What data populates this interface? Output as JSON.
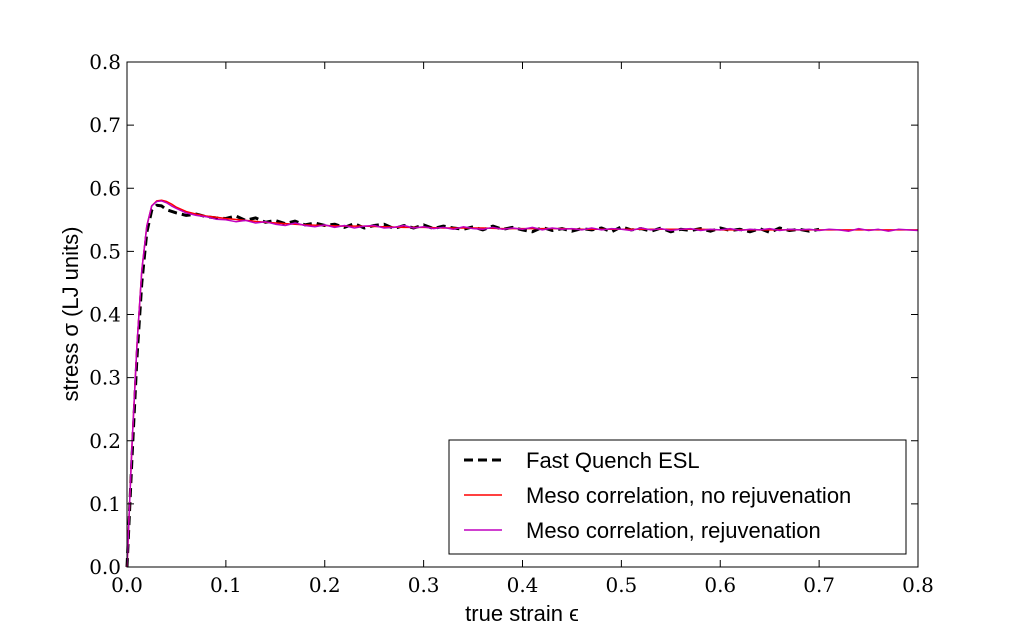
{
  "chart_data": {
    "type": "line",
    "xlabel": "true strain ϵ",
    "ylabel": "stress σ (LJ units)",
    "xlim": [
      0.0,
      0.8
    ],
    "ylim": [
      0.0,
      0.8
    ],
    "xticks": [
      "0.0",
      "0.1",
      "0.2",
      "0.3",
      "0.4",
      "0.5",
      "0.6",
      "0.7",
      "0.8"
    ],
    "yticks": [
      "0.0",
      "0.1",
      "0.2",
      "0.3",
      "0.4",
      "0.5",
      "0.6",
      "0.7",
      "0.8"
    ],
    "grid": false,
    "legend_position": "lower-right",
    "series": [
      {
        "name": "Fast Quench ESL",
        "style": "dashed",
        "color": "#000000",
        "x": [
          0.0,
          0.005,
          0.01,
          0.015,
          0.02,
          0.025,
          0.03,
          0.035,
          0.04,
          0.05,
          0.06,
          0.07,
          0.08,
          0.09,
          0.1,
          0.11,
          0.12,
          0.13,
          0.14,
          0.15,
          0.16,
          0.17,
          0.18,
          0.19,
          0.2,
          0.21,
          0.22,
          0.23,
          0.24,
          0.25,
          0.26,
          0.27,
          0.28,
          0.29,
          0.3,
          0.31,
          0.32,
          0.33,
          0.34,
          0.35,
          0.36,
          0.37,
          0.38,
          0.39,
          0.4,
          0.41,
          0.42,
          0.43,
          0.44,
          0.45,
          0.46,
          0.47,
          0.48,
          0.49,
          0.5,
          0.51,
          0.52,
          0.53,
          0.54,
          0.55,
          0.56,
          0.57,
          0.58,
          0.59,
          0.6,
          0.61,
          0.62,
          0.63,
          0.64,
          0.65,
          0.66,
          0.67,
          0.68,
          0.69,
          0.7
        ],
        "y": [
          0.0,
          0.17,
          0.33,
          0.45,
          0.53,
          0.565,
          0.573,
          0.572,
          0.566,
          0.561,
          0.557,
          0.559,
          0.555,
          0.553,
          0.552,
          0.556,
          0.549,
          0.553,
          0.546,
          0.549,
          0.544,
          0.548,
          0.542,
          0.545,
          0.541,
          0.543,
          0.538,
          0.544,
          0.537,
          0.541,
          0.543,
          0.536,
          0.541,
          0.537,
          0.542,
          0.536,
          0.54,
          0.537,
          0.535,
          0.539,
          0.534,
          0.54,
          0.535,
          0.538,
          0.534,
          0.531,
          0.538,
          0.533,
          0.536,
          0.532,
          0.536,
          0.534,
          0.537,
          0.531,
          0.539,
          0.534,
          0.536,
          0.532,
          0.537,
          0.531,
          0.535,
          0.533,
          0.536,
          0.532,
          0.537,
          0.533,
          0.535,
          0.531,
          0.536,
          0.53,
          0.537,
          0.533,
          0.535,
          0.532,
          0.535
        ]
      },
      {
        "name": "Meso correlation, no rejuvenation",
        "style": "solid",
        "color": "#ff0000",
        "x": [
          0.0,
          0.005,
          0.01,
          0.015,
          0.02,
          0.025,
          0.03,
          0.035,
          0.04,
          0.045,
          0.05,
          0.06,
          0.07,
          0.08,
          0.1,
          0.12,
          0.14,
          0.16,
          0.18,
          0.2,
          0.22,
          0.24,
          0.26,
          0.28,
          0.3,
          0.32,
          0.34,
          0.36,
          0.38,
          0.4,
          0.42,
          0.44,
          0.46,
          0.48,
          0.5,
          0.52,
          0.54,
          0.56,
          0.58,
          0.6,
          0.62,
          0.64,
          0.66,
          0.68,
          0.7,
          0.72,
          0.74,
          0.76,
          0.78,
          0.8
        ],
        "y": [
          0.0,
          0.19,
          0.35,
          0.47,
          0.54,
          0.572,
          0.58,
          0.581,
          0.579,
          0.575,
          0.57,
          0.563,
          0.559,
          0.556,
          0.552,
          0.549,
          0.546,
          0.544,
          0.542,
          0.541,
          0.54,
          0.54,
          0.539,
          0.538,
          0.538,
          0.537,
          0.537,
          0.537,
          0.536,
          0.536,
          0.536,
          0.536,
          0.535,
          0.535,
          0.535,
          0.535,
          0.535,
          0.535,
          0.535,
          0.534,
          0.534,
          0.534,
          0.534,
          0.534,
          0.534,
          0.534,
          0.534,
          0.534,
          0.534,
          0.534
        ]
      },
      {
        "name": "Meso correlation, rejuvenation",
        "style": "solid",
        "color": "#bf00bf",
        "x": [
          0.0,
          0.005,
          0.01,
          0.015,
          0.02,
          0.025,
          0.03,
          0.035,
          0.04,
          0.045,
          0.05,
          0.06,
          0.07,
          0.08,
          0.09,
          0.1,
          0.11,
          0.12,
          0.13,
          0.14,
          0.15,
          0.16,
          0.17,
          0.18,
          0.19,
          0.2,
          0.21,
          0.22,
          0.23,
          0.24,
          0.25,
          0.26,
          0.27,
          0.28,
          0.29,
          0.3,
          0.31,
          0.32,
          0.33,
          0.34,
          0.35,
          0.36,
          0.37,
          0.38,
          0.39,
          0.4,
          0.41,
          0.42,
          0.43,
          0.44,
          0.45,
          0.46,
          0.47,
          0.48,
          0.49,
          0.5,
          0.51,
          0.52,
          0.53,
          0.54,
          0.55,
          0.56,
          0.57,
          0.58,
          0.59,
          0.6,
          0.61,
          0.62,
          0.63,
          0.64,
          0.65,
          0.66,
          0.67,
          0.68,
          0.69,
          0.7,
          0.71,
          0.72,
          0.73,
          0.74,
          0.75,
          0.76,
          0.77,
          0.78,
          0.79,
          0.8
        ],
        "y": [
          0.0,
          0.19,
          0.35,
          0.47,
          0.54,
          0.572,
          0.579,
          0.58,
          0.577,
          0.572,
          0.568,
          0.561,
          0.557,
          0.555,
          0.551,
          0.55,
          0.547,
          0.549,
          0.545,
          0.547,
          0.543,
          0.541,
          0.545,
          0.541,
          0.539,
          0.542,
          0.538,
          0.541,
          0.537,
          0.54,
          0.541,
          0.537,
          0.538,
          0.541,
          0.537,
          0.539,
          0.536,
          0.538,
          0.535,
          0.539,
          0.536,
          0.535,
          0.538,
          0.535,
          0.537,
          0.535,
          0.538,
          0.534,
          0.537,
          0.535,
          0.536,
          0.534,
          0.537,
          0.534,
          0.536,
          0.535,
          0.533,
          0.537,
          0.534,
          0.536,
          0.533,
          0.535,
          0.536,
          0.533,
          0.535,
          0.534,
          0.536,
          0.533,
          0.535,
          0.534,
          0.536,
          0.533,
          0.535,
          0.534,
          0.535,
          0.533,
          0.535,
          0.534,
          0.532,
          0.536,
          0.533,
          0.535,
          0.532,
          0.535,
          0.534,
          0.533
        ]
      }
    ]
  }
}
